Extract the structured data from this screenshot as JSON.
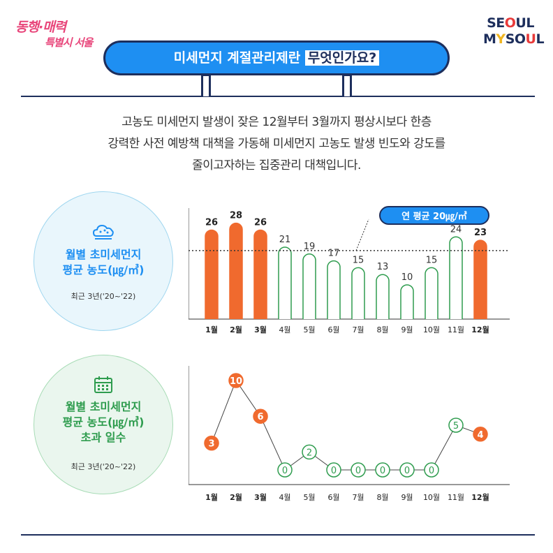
{
  "header": {
    "slogan_line1": "동행·매력",
    "slogan_line2": "특별시 서울",
    "logo_row1_a": "SE",
    "logo_row1_b": "O",
    "logo_row1_c": "UL",
    "logo_row2_a": "M",
    "logo_row2_b": "Y",
    "logo_row2_c": "SO",
    "logo_row2_d": "U",
    "logo_row2_e": "L",
    "title_prefix": "미세먼지 계절관리제란 ",
    "title_highlight": "무엇인가요?"
  },
  "intro": {
    "line1": "고농도 미세먼지 발생이 잦은 12월부터 3월까지 평상시보다 한층",
    "line2": "강력한 사전 예방책 대책을 가동해 미세먼지 고농도 발생 빈도와 강도를",
    "line3": "줄이고자하는 집중관리 대책입니다."
  },
  "section1": {
    "title_line1": "월별 초미세먼지",
    "title_line2": "평균 농도(㎍/㎥)",
    "subtitle": "최근 3년('20~'22)",
    "icon": "dust-cloud-icon"
  },
  "section2": {
    "title_line1": "월별 초미세먼지",
    "title_line2": "평균 농도(㎍/㎥)",
    "title_line3": "초과 일수",
    "subtitle": "최근 3년('20~'22)",
    "icon": "calendar-icon"
  },
  "colors": {
    "accent_orange": "#f06a2e",
    "green": "#2e9c4e",
    "navy": "#1d2e5c",
    "blue": "#1e8ff2"
  },
  "chart_data": [
    {
      "type": "bar",
      "categories": [
        "1월",
        "2월",
        "3월",
        "4월",
        "5월",
        "6월",
        "7월",
        "8월",
        "9월",
        "10월",
        "11월",
        "12월"
      ],
      "values": [
        26,
        28,
        26,
        21,
        19,
        17,
        15,
        13,
        10,
        15,
        24,
        23
      ],
      "highlighted": [
        true,
        true,
        true,
        false,
        false,
        false,
        false,
        false,
        false,
        false,
        false,
        true
      ],
      "reference_line": {
        "value": 20,
        "label": "연 평균 20㎍/㎥"
      },
      "ylim": [
        0,
        32
      ],
      "grid": false
    },
    {
      "type": "line",
      "categories": [
        "1월",
        "2월",
        "3월",
        "4월",
        "5월",
        "6월",
        "7월",
        "8월",
        "9월",
        "10월",
        "11월",
        "12월"
      ],
      "values": [
        3,
        10,
        6,
        0,
        2,
        0,
        0,
        0,
        0,
        0,
        5,
        4
      ],
      "highlighted": [
        true,
        true,
        true,
        false,
        false,
        false,
        false,
        false,
        false,
        false,
        false,
        true
      ],
      "ylim": [
        0,
        11
      ],
      "grid": false
    }
  ]
}
